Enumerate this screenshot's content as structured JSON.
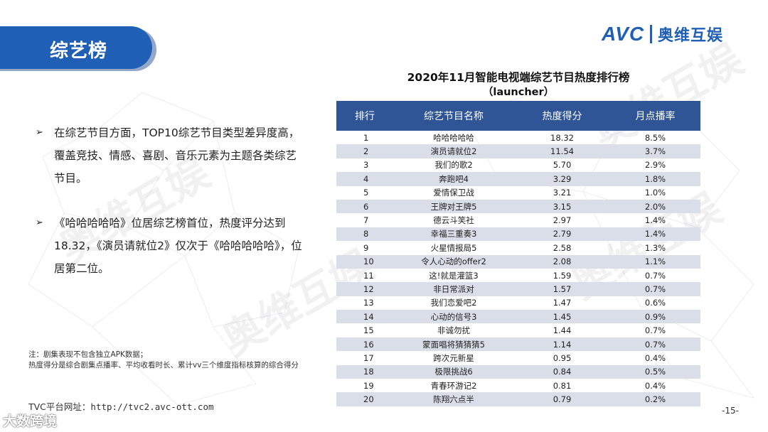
{
  "header": {
    "title": "综艺榜"
  },
  "logo": {
    "brand": "AVC",
    "cn": "奥维互娱"
  },
  "bullets": [
    "在综艺节目方面，TOP10综艺节目类型差异度高，覆盖竞技、情感、喜剧、音乐元素为主题各类综艺节目。",
    "《哈哈哈哈哈》位居综艺榜首位，热度评分达到18.32，《演员请就位2》仅次于《哈哈哈哈哈》，位居第二位。"
  ],
  "bullet_marker": "➢",
  "note": {
    "line1": "注：剧集表现不包含独立APK数据；",
    "line2": "热度得分是综合剧集点播率、平均收看时长、累计vv三个维度指标核算的综合得分"
  },
  "footer": {
    "url_label": "TVC平台网址：",
    "url": "http://tvc2.avc-ott.com",
    "page": "-15-",
    "watermark": "大数跨境"
  },
  "watermark_text": "奥维互娱",
  "table": {
    "title": "2020年11月智能电视端综艺节目热度排行榜",
    "subtitle": "（launcher）",
    "headers": [
      "排行",
      "综艺节目名称",
      "热度得分",
      "月点播率"
    ],
    "rows": [
      [
        "1",
        "哈哈哈哈哈",
        "18.32",
        "8.5%"
      ],
      [
        "2",
        "演员请就位2",
        "11.54",
        "3.7%"
      ],
      [
        "3",
        "我们的歌2",
        "5.70",
        "2.9%"
      ],
      [
        "4",
        "奔跑吧4",
        "3.29",
        "1.8%"
      ],
      [
        "5",
        "爱情保卫战",
        "3.21",
        "1.0%"
      ],
      [
        "6",
        "王牌对王牌5",
        "3.15",
        "2.0%"
      ],
      [
        "7",
        "德云斗笑社",
        "2.97",
        "1.4%"
      ],
      [
        "8",
        "幸福三重奏3",
        "2.79",
        "1.4%"
      ],
      [
        "9",
        "火星情报局5",
        "2.58",
        "1.3%"
      ],
      [
        "10",
        "令人心动的offer2",
        "2.08",
        "1.1%"
      ],
      [
        "11",
        "这!就是灌篮3",
        "1.59",
        "0.7%"
      ],
      [
        "12",
        "非日常派对",
        "1.57",
        "0.7%"
      ],
      [
        "13",
        "我们恋爱吧2",
        "1.47",
        "0.6%"
      ],
      [
        "14",
        "心动的信号3",
        "1.45",
        "0.9%"
      ],
      [
        "15",
        "非诚勿扰",
        "1.44",
        "0.7%"
      ],
      [
        "16",
        "蒙面唱将猜猜猜5",
        "1.14",
        "0.7%"
      ],
      [
        "17",
        "跨次元新星",
        "0.95",
        "0.4%"
      ],
      [
        "18",
        "极限挑战6",
        "0.84",
        "0.5%"
      ],
      [
        "19",
        "青春环游记2",
        "0.81",
        "0.4%"
      ],
      [
        "20",
        "陈翔六点半",
        "0.79",
        "0.2%"
      ]
    ]
  },
  "colors": {
    "brand_blue": "#1f5fb5",
    "header_blue": "#2f5597",
    "stripe": "#d9dee8"
  }
}
